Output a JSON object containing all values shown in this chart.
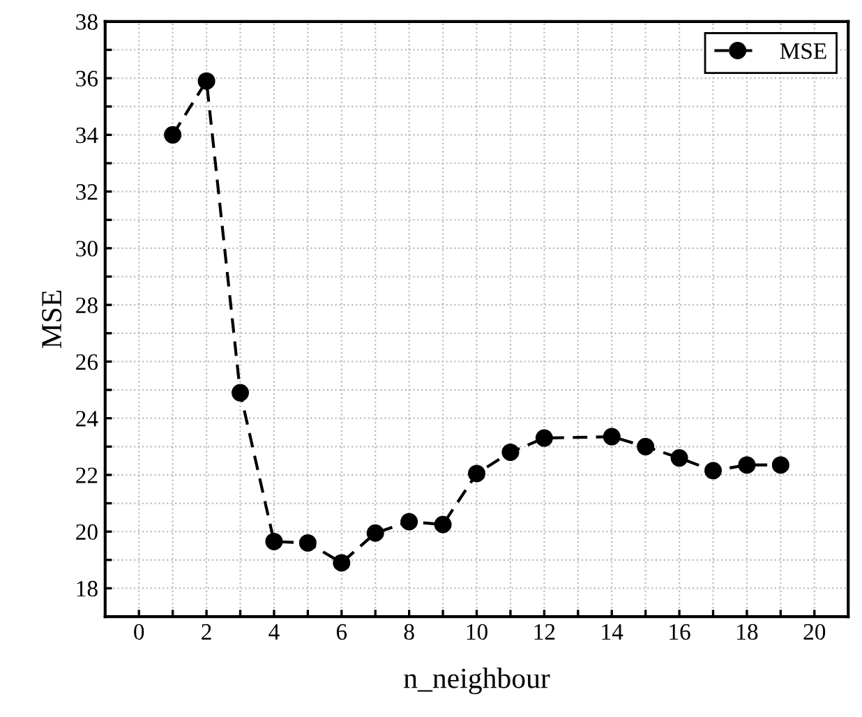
{
  "chart_data": {
    "type": "line",
    "xlabel": "n_neighbour",
    "ylabel": "MSE",
    "x": [
      1,
      2,
      3,
      4,
      5,
      6,
      7,
      8,
      9,
      10,
      11,
      12,
      14,
      15,
      16,
      17,
      18,
      19
    ],
    "series": [
      {
        "name": "MSE",
        "color": "#000000",
        "values": [
          34.0,
          35.9,
          24.9,
          19.65,
          19.6,
          18.9,
          19.95,
          20.35,
          20.25,
          22.05,
          22.8,
          23.3,
          23.35,
          23.0,
          22.6,
          22.15,
          22.35,
          22.35
        ]
      }
    ],
    "xlim": [
      -1,
      21
    ],
    "xticks": [
      0,
      {
        "value": 1,
        "label": null
      },
      2,
      {
        "value": 3,
        "label": null
      },
      4,
      {
        "value": 5,
        "label": null
      },
      6,
      {
        "value": 7,
        "label": null
      },
      8,
      {
        "value": 9,
        "label": null
      },
      10,
      {
        "value": 11,
        "label": null
      },
      12,
      {
        "value": 13,
        "label": null
      },
      14,
      {
        "value": 15,
        "label": null
      },
      16,
      {
        "value": 17,
        "label": null
      },
      18,
      {
        "value": 19,
        "label": null
      },
      20
    ],
    "ylim": [
      17,
      38
    ],
    "yticks": [
      18,
      {
        "value": 19,
        "label": null
      },
      20,
      {
        "value": 21,
        "label": null
      },
      22,
      {
        "value": 23,
        "label": null
      },
      24,
      {
        "value": 25,
        "label": null
      },
      26,
      {
        "value": 27,
        "label": null
      },
      28,
      {
        "value": 29,
        "label": null
      },
      30,
      {
        "value": 31,
        "label": null
      },
      32,
      {
        "value": 33,
        "label": null
      },
      34,
      {
        "value": 35,
        "label": null
      },
      36,
      {
        "value": 37,
        "label": null
      },
      38
    ],
    "grid": true,
    "legend": "top right",
    "marker": "circle",
    "line_style": "dashed"
  }
}
